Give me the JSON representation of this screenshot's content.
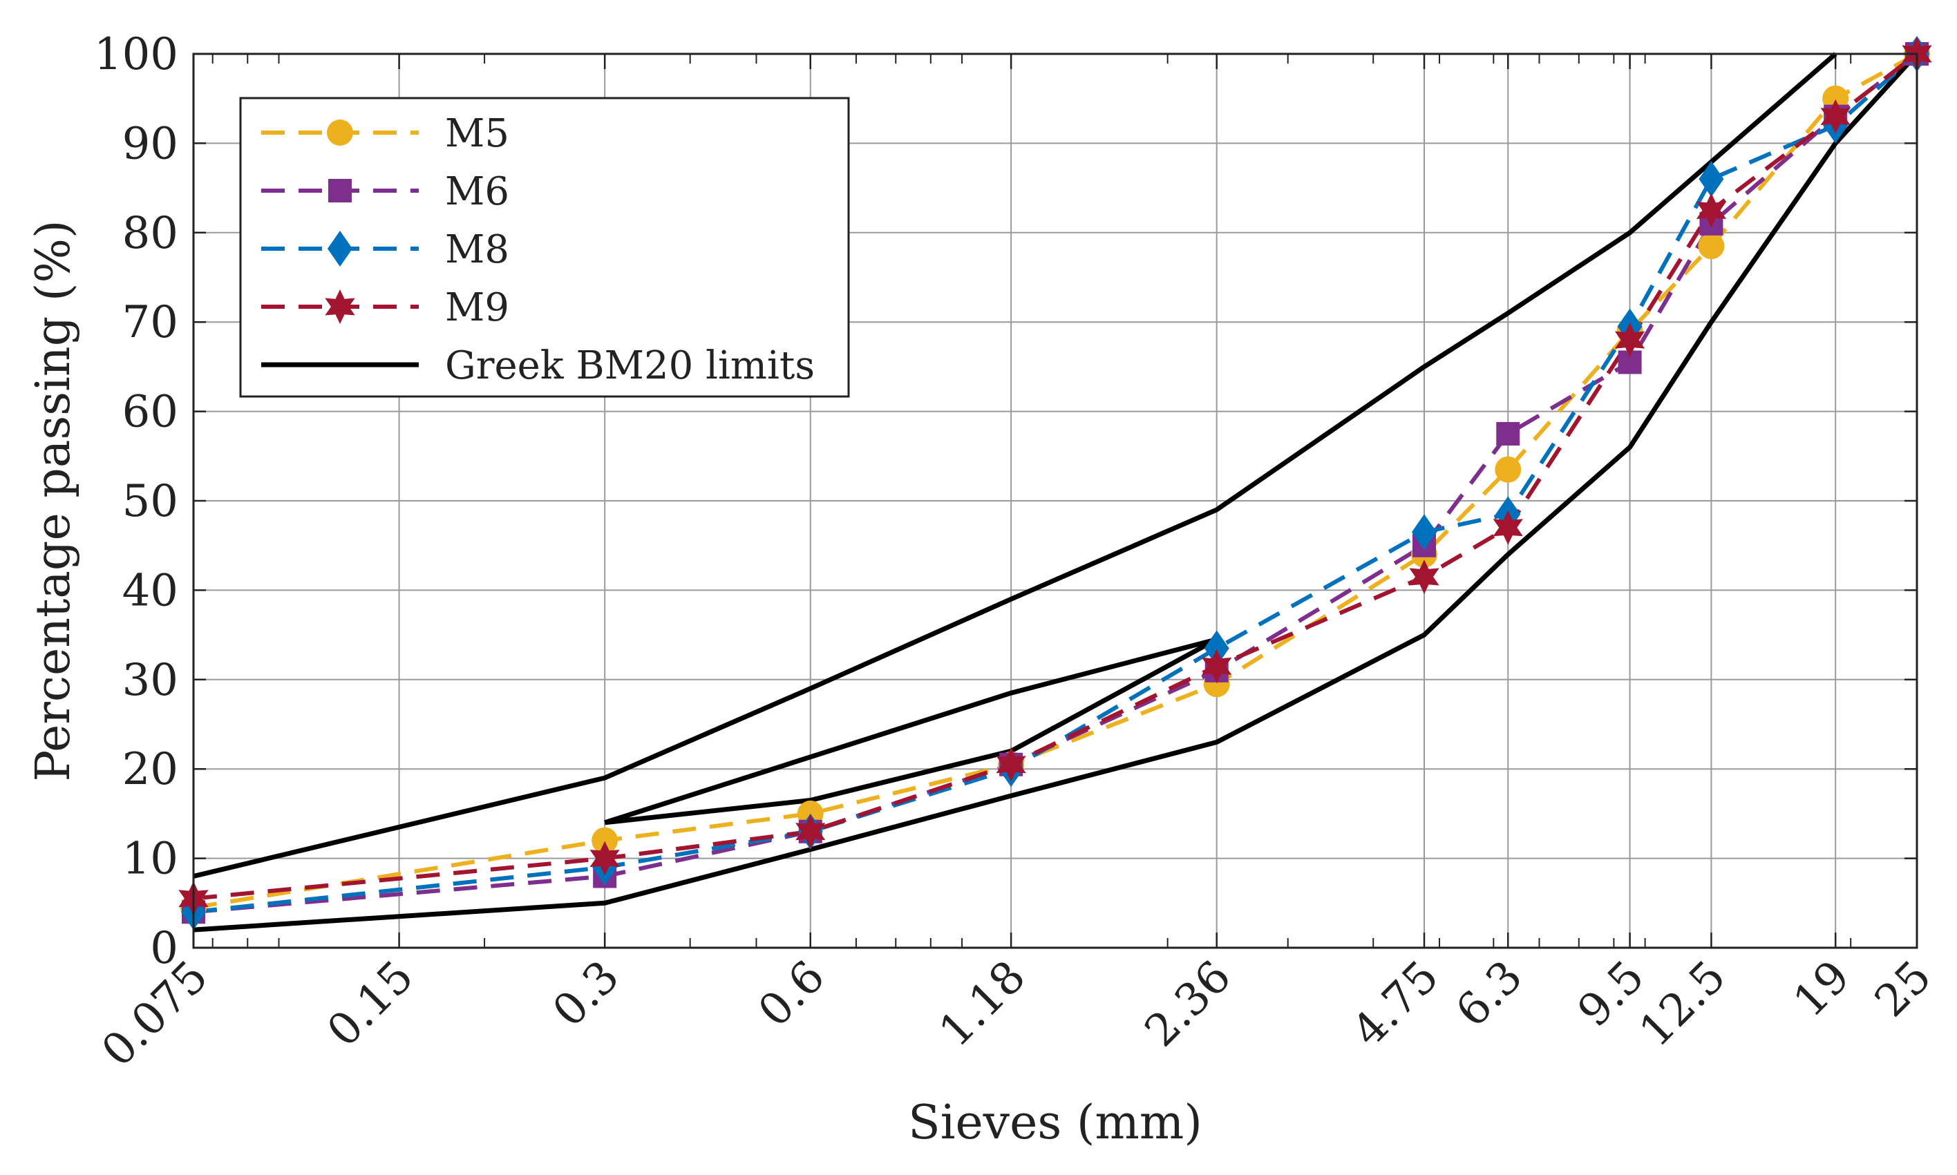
{
  "chart_data": {
    "type": "line",
    "xlabel": "Sieves (mm)",
    "ylabel": "Percentage passing (%)",
    "x_scale": "log",
    "xlim": [
      0.075,
      25
    ],
    "ylim": [
      0,
      100
    ],
    "grid": true,
    "legend_position": "top-left",
    "x_ticks": [
      0.075,
      0.15,
      0.3,
      0.6,
      1.18,
      2.36,
      4.75,
      6.3,
      9.5,
      12.5,
      19,
      25
    ],
    "x_tick_labels": [
      "0.075",
      "0.15",
      "0.3",
      "0.6",
      "1.18",
      "2.36",
      "4.75",
      "6.3",
      "9.5",
      "12.5",
      "19",
      "25"
    ],
    "y_ticks": [
      0,
      10,
      20,
      30,
      40,
      50,
      60,
      70,
      80,
      90,
      100
    ],
    "y_tick_labels": [
      "0",
      "10",
      "20",
      "30",
      "40",
      "50",
      "60",
      "70",
      "80",
      "90",
      "100"
    ],
    "series": [
      {
        "name": "M5",
        "color": "#EDB120",
        "marker": "circle",
        "style": "dashed",
        "x": [
          0.075,
          0.3,
          0.6,
          1.18,
          2.36,
          4.75,
          6.3,
          9.5,
          12.5,
          19,
          25
        ],
        "y": [
          4.5,
          12,
          15,
          20.5,
          29.5,
          44,
          53.5,
          69,
          78.5,
          95,
          100
        ]
      },
      {
        "name": "M6",
        "color": "#7E2F8E",
        "marker": "square",
        "style": "dashed",
        "x": [
          0.075,
          0.3,
          0.6,
          1.18,
          2.36,
          4.75,
          6.3,
          9.5,
          12.5,
          19,
          25
        ],
        "y": [
          4,
          8,
          13,
          20.5,
          31,
          45,
          57.5,
          65.5,
          81,
          93,
          100
        ]
      },
      {
        "name": "M8",
        "color": "#0072BD",
        "marker": "diamond",
        "style": "dashed",
        "x": [
          0.075,
          0.3,
          0.6,
          1.18,
          2.36,
          4.75,
          6.3,
          9.5,
          12.5,
          19,
          25
        ],
        "y": [
          4,
          9,
          13,
          20,
          33.5,
          46.5,
          48.5,
          69.5,
          86,
          92,
          100
        ]
      },
      {
        "name": "M9",
        "color": "#A2142F",
        "marker": "hexagram",
        "style": "dashed",
        "x": [
          0.075,
          0.3,
          0.6,
          1.18,
          2.36,
          4.75,
          6.3,
          9.5,
          12.5,
          19,
          25
        ],
        "y": [
          5.5,
          10,
          13,
          20.5,
          31.5,
          41.5,
          47,
          68,
          82.5,
          93,
          100
        ]
      },
      {
        "name": "Greek BM20 limits",
        "color": "#000000",
        "marker": "none",
        "style": "solid",
        "lines": [
          {
            "x": [
              0.075,
              0.3,
              0.6,
              1.18,
              2.36,
              4.75,
              6.3,
              9.5,
              19
            ],
            "y": [
              8,
              19,
              29,
              39,
              49,
              65,
              71,
              80,
              100
            ]
          },
          {
            "x": [
              0.075,
              0.3,
              0.6,
              1.18,
              2.36,
              4.75,
              6.3,
              9.5,
              12.5,
              19,
              25
            ],
            "y": [
              2,
              5,
              11,
              17,
              23,
              35,
              44,
              56,
              70,
              90,
              100
            ]
          },
          {
            "x": [
              0.3,
              1.18,
              2.36
            ],
            "y": [
              14,
              28.5,
              34.5
            ]
          },
          {
            "x": [
              0.3,
              0.6,
              1.18,
              2.36
            ],
            "y": [
              14,
              16.5,
              22,
              34.5
            ]
          }
        ]
      }
    ]
  }
}
